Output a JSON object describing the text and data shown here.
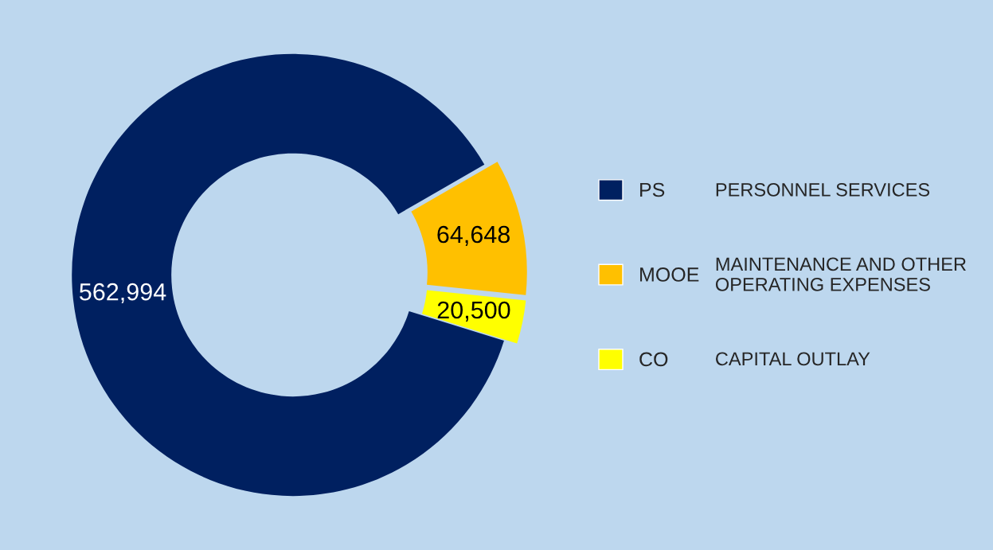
{
  "chart_data": {
    "type": "donut",
    "categories": [
      "PS",
      "MOOE",
      "CO"
    ],
    "values": [
      562994,
      64648,
      20500
    ],
    "colors": [
      "#002060",
      "#ffc000",
      "#ffff00"
    ],
    "value_labels": [
      "562,994",
      "64,648",
      "20,500"
    ],
    "legend": "right",
    "annotations": [
      "PERSONNEL SERVICES",
      "MAINTENANCE AND OTHER\nOPERATING EXPENSES",
      "CAPITAL OUTLAY"
    ]
  }
}
